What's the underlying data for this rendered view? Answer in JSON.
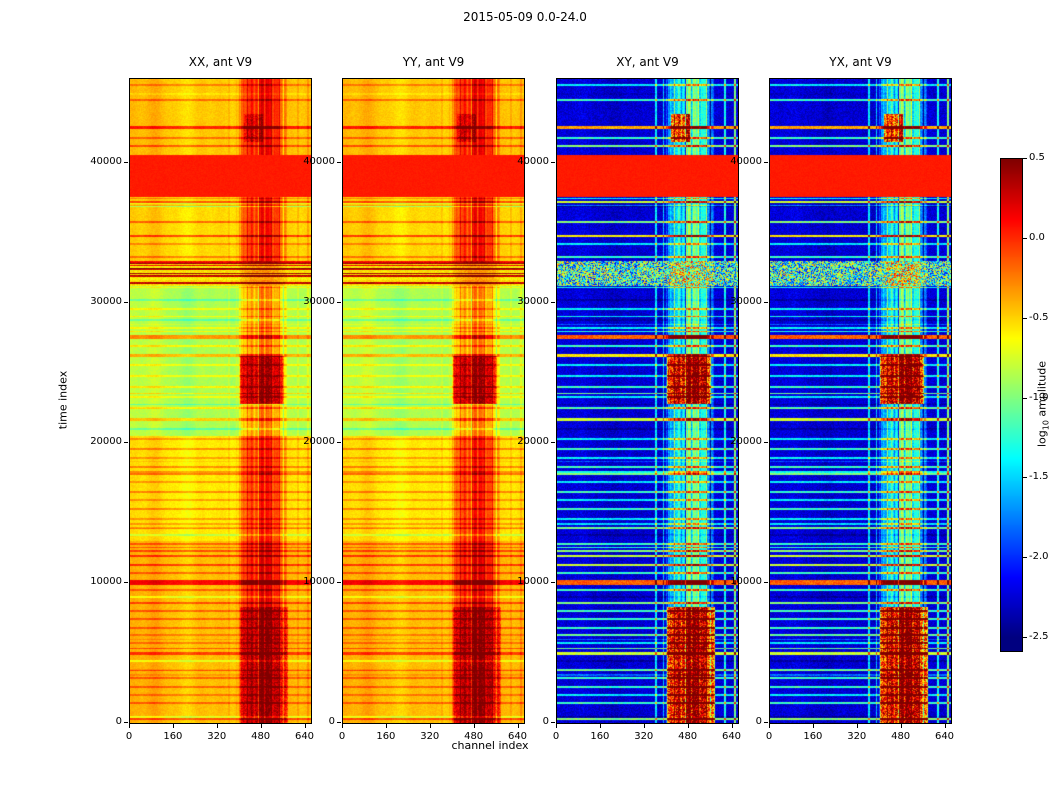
{
  "chart_data": {
    "type": "heatmap",
    "title": "2015-05-09 0.0-24.0",
    "xlabel": "channel index",
    "ylabel": "time index",
    "x_range": [
      0,
      660
    ],
    "y_range": [
      0,
      46000
    ],
    "x_ticks": [
      0,
      160,
      320,
      480,
      640
    ],
    "y_ticks": [
      0,
      10000,
      20000,
      30000,
      40000
    ],
    "panels": [
      {
        "title": "XX, ant V9",
        "kind": "parallel"
      },
      {
        "title": "YY, ant V9",
        "kind": "parallel"
      },
      {
        "title": "XY, ant V9",
        "kind": "cross"
      },
      {
        "title": "YX, ant V9",
        "kind": "cross"
      }
    ],
    "colorbar": {
      "vmin": -2.5,
      "vmax": 0.5,
      "ticks": [
        0.5,
        0.0,
        -0.5,
        -1.0,
        -1.5,
        -2.0,
        -2.5
      ],
      "colormap": "jet",
      "label_parts": {
        "prefix": "log",
        "sub": "10",
        "suffix": " amplitude"
      }
    },
    "features": {
      "seed": 77,
      "cross_base": -2.25,
      "saturated_band": {
        "t0": 37600,
        "t1": 40600,
        "value": 0.05
      },
      "dark_cluster": {
        "t0": 31200,
        "t1": 33000
      },
      "zones": [
        {
          "t0": 0,
          "t1": 13000,
          "base": -0.42
        },
        {
          "t0": 13000,
          "t1": 20500,
          "base": -0.55
        },
        {
          "t0": 20500,
          "t1": 31200,
          "base": -0.85
        },
        {
          "t0": 31200,
          "t1": 33000,
          "base": -0.6
        },
        {
          "t0": 33000,
          "t1": 37600,
          "base": -0.5
        },
        {
          "t0": 40600,
          "t1": 46000,
          "base": -0.45
        }
      ],
      "band": {
        "c0": 396,
        "c1": 574,
        "par_boost": 0.5,
        "cross_boost": 1.05
      },
      "blobs": [
        {
          "t0": 22800,
          "t1": 26200,
          "c0": 400,
          "c1": 562,
          "par": 0.65,
          "cross": 1.6
        },
        {
          "t0": 0,
          "t1": 8300,
          "c0": 400,
          "c1": 575,
          "par": 0.28,
          "cross": 1.6
        },
        {
          "t0": 41500,
          "t1": 43500,
          "c0": 415,
          "c1": 485,
          "par": 0.22,
          "cross": 1.3
        }
      ],
      "columns": [
        {
          "c": 362,
          "w": 6,
          "par": 0.08,
          "cross": 0.85
        },
        {
          "c": 388,
          "w": 5,
          "par": 0.06,
          "cross": 0.7
        },
        {
          "c": 612,
          "w": 7,
          "par": 0.1,
          "cross": 0.95
        },
        {
          "c": 650,
          "w": 9,
          "par": 0.12,
          "cross": 1.25
        }
      ],
      "major_stripes": [
        {
          "t": 45600,
          "s": 0.4,
          "w": 2
        },
        {
          "t": 44500,
          "s": 0.5,
          "w": 2
        },
        {
          "t": 42600,
          "s": 0.9,
          "w": 3
        },
        {
          "t": 41800,
          "s": 0.5,
          "w": 2
        },
        {
          "t": 41200,
          "s": 0.6,
          "w": 2
        },
        {
          "t": 37200,
          "s": 0.7,
          "w": 2
        },
        {
          "t": 36900,
          "s": 0.8,
          "w": 2,
          "dark": true
        },
        {
          "t": 35800,
          "s": 0.6,
          "w": 2
        },
        {
          "t": 34800,
          "s": 0.8,
          "w": 2
        },
        {
          "t": 34200,
          "s": 0.4,
          "w": 2
        },
        {
          "t": 33300,
          "s": 0.5,
          "w": 2
        },
        {
          "t": 30200,
          "s": 0.5,
          "w": 2,
          "dark": true
        },
        {
          "t": 29600,
          "s": 0.4,
          "w": 2
        },
        {
          "t": 28800,
          "s": 0.5,
          "w": 2,
          "dark": true
        },
        {
          "t": 28200,
          "s": 0.4,
          "w": 2
        },
        {
          "t": 27600,
          "s": 1.0,
          "w": 4
        },
        {
          "t": 26900,
          "s": 0.5,
          "w": 2
        },
        {
          "t": 26300,
          "s": 0.8,
          "w": 3
        },
        {
          "t": 25600,
          "s": 0.4,
          "w": 2
        },
        {
          "t": 24800,
          "s": 0.4,
          "w": 2
        },
        {
          "t": 24000,
          "s": 0.5,
          "w": 2
        },
        {
          "t": 23300,
          "s": 0.4,
          "w": 2
        },
        {
          "t": 22500,
          "s": 0.5,
          "w": 2
        },
        {
          "t": 21700,
          "s": 0.7,
          "w": 3
        },
        {
          "t": 21000,
          "s": 0.5,
          "w": 2,
          "dark": true
        },
        {
          "t": 20300,
          "s": 0.4,
          "w": 2
        },
        {
          "t": 19600,
          "s": 0.5,
          "w": 2
        },
        {
          "t": 18900,
          "s": 0.4,
          "w": 2
        },
        {
          "t": 18300,
          "s": 0.5,
          "w": 2
        },
        {
          "t": 17800,
          "s": 0.6,
          "w": 2
        },
        {
          "t": 17200,
          "s": 0.4,
          "w": 2
        },
        {
          "t": 16500,
          "s": 0.5,
          "w": 2
        },
        {
          "t": 15900,
          "s": 0.4,
          "w": 2
        },
        {
          "t": 15300,
          "s": 0.5,
          "w": 2
        },
        {
          "t": 14600,
          "s": 0.4,
          "w": 2
        },
        {
          "t": 13900,
          "s": 0.6,
          "w": 2
        },
        {
          "t": 13400,
          "s": 0.5,
          "w": 2,
          "dark": true
        },
        {
          "t": 12800,
          "s": 0.5,
          "w": 2
        },
        {
          "t": 12300,
          "s": 0.6,
          "w": 2
        },
        {
          "t": 11900,
          "s": 0.7,
          "w": 2
        },
        {
          "t": 11300,
          "s": 0.7,
          "w": 2
        },
        {
          "t": 10700,
          "s": 0.5,
          "w": 2
        },
        {
          "t": 10050,
          "s": 1.0,
          "w": 5
        },
        {
          "t": 9500,
          "s": 0.5,
          "w": 2
        },
        {
          "t": 9000,
          "s": 0.5,
          "w": 2,
          "dark": true
        },
        {
          "t": 8600,
          "s": 0.6,
          "w": 2
        },
        {
          "t": 8000,
          "s": 0.5,
          "w": 2
        },
        {
          "t": 7400,
          "s": 0.5,
          "w": 2
        },
        {
          "t": 6800,
          "s": 0.5,
          "w": 2
        },
        {
          "t": 6300,
          "s": 0.6,
          "w": 2
        },
        {
          "t": 5700,
          "s": 0.4,
          "w": 2
        },
        {
          "t": 5000,
          "s": 0.7,
          "w": 3
        },
        {
          "t": 4400,
          "s": 0.5,
          "w": 2,
          "dark": true
        },
        {
          "t": 3800,
          "s": 0.6,
          "w": 2
        },
        {
          "t": 3200,
          "s": 0.5,
          "w": 2
        },
        {
          "t": 2600,
          "s": 0.5,
          "w": 2
        },
        {
          "t": 2000,
          "s": 0.4,
          "w": 2
        },
        {
          "t": 1400,
          "s": 0.5,
          "w": 2
        }
      ],
      "minor_stripe_count": 30
    }
  }
}
